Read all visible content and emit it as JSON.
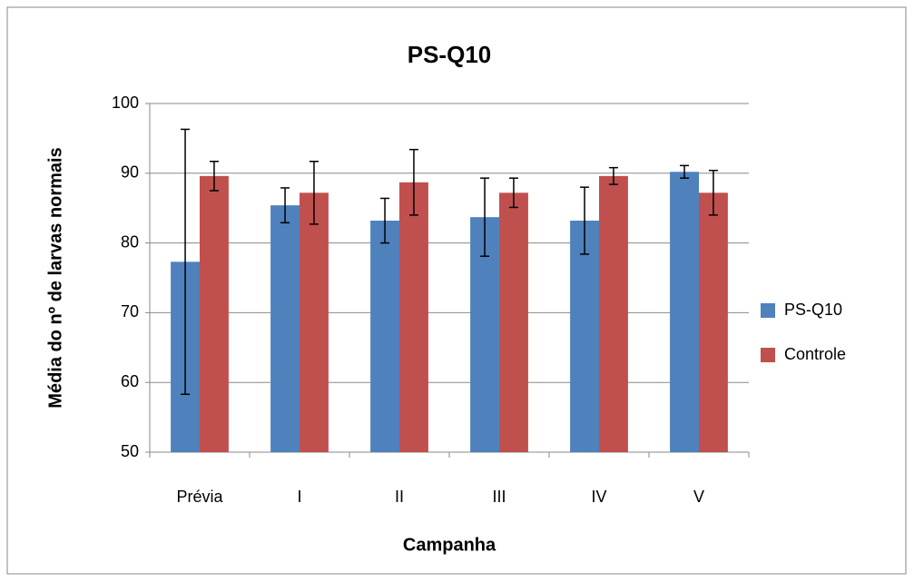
{
  "chart_data": {
    "type": "bar",
    "title": "PS-Q10",
    "x_label": "Campanha",
    "y_label": "Média do nº de larvas normais",
    "categories": [
      "Prévia",
      "I",
      "II",
      "III",
      "IV",
      "V"
    ],
    "series": [
      {
        "name": "PS-Q10",
        "color": "#4f81bd",
        "values": [
          77.3,
          85.4,
          83.2,
          83.7,
          83.2,
          90.2
        ],
        "errors": [
          19,
          2.5,
          3.2,
          5.6,
          4.8,
          0.9
        ]
      },
      {
        "name": "Controle",
        "color": "#c0504d",
        "values": [
          89.6,
          87.2,
          88.7,
          87.2,
          89.6,
          87.2
        ],
        "errors": [
          2.1,
          4.5,
          4.7,
          2.1,
          1.2,
          3.2
        ]
      }
    ],
    "ylim": [
      50,
      100
    ],
    "yticks": [
      50,
      60,
      70,
      80,
      90,
      100
    ],
    "grid": true,
    "legend": "right"
  }
}
